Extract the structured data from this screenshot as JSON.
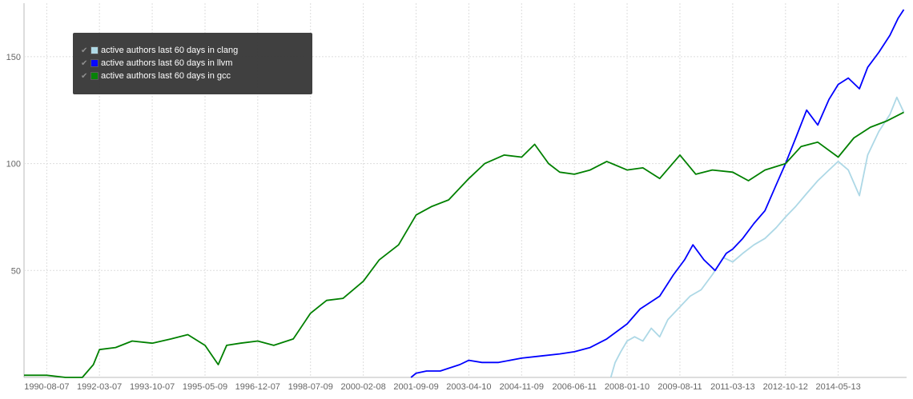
{
  "chart_data": {
    "type": "line",
    "title": "",
    "xlabel": "",
    "ylabel": "",
    "ylim": [
      0,
      175
    ],
    "xlim": [
      "1989-12-01",
      "2016-06-01"
    ],
    "grid": true,
    "legend_placement": "top-left",
    "x_tick_labels": [
      "1990-08-07",
      "1992-03-07",
      "1993-10-07",
      "1995-05-09",
      "1996-12-07",
      "1998-07-09",
      "2000-02-08",
      "2001-09-09",
      "2003-04-10",
      "2004-11-09",
      "2006-06-11",
      "2008-01-10",
      "2009-08-11",
      "2011-03-13",
      "2012-10-12",
      "2014-05-13"
    ],
    "y_tick_labels": [
      "50",
      "100",
      "150"
    ],
    "y_ticks": [
      50,
      100,
      150
    ],
    "series": [
      {
        "name": "active authors last 60 days in clang",
        "color": "#add8e6",
        "points": [
          [
            "2007-07-15",
            0
          ],
          [
            "2007-09-01",
            7
          ],
          [
            "2007-11-01",
            12
          ],
          [
            "2008-01-10",
            17
          ],
          [
            "2008-04-01",
            19
          ],
          [
            "2008-07-01",
            17
          ],
          [
            "2008-10-01",
            23
          ],
          [
            "2009-01-01",
            19
          ],
          [
            "2009-04-01",
            27
          ],
          [
            "2009-08-11",
            33
          ],
          [
            "2009-12-01",
            38
          ],
          [
            "2010-04-01",
            41
          ],
          [
            "2010-08-01",
            48
          ],
          [
            "2010-12-01",
            56
          ],
          [
            "2011-03-13",
            54
          ],
          [
            "2011-07-01",
            58
          ],
          [
            "2011-11-01",
            62
          ],
          [
            "2012-03-01",
            65
          ],
          [
            "2012-07-01",
            70
          ],
          [
            "2012-10-12",
            75
          ],
          [
            "2013-02-01",
            80
          ],
          [
            "2013-06-01",
            86
          ],
          [
            "2013-10-01",
            92
          ],
          [
            "2014-02-01",
            97
          ],
          [
            "2014-05-13",
            101
          ],
          [
            "2014-09-01",
            97
          ],
          [
            "2015-01-01",
            85
          ],
          [
            "2015-04-01",
            104
          ],
          [
            "2015-08-01",
            115
          ],
          [
            "2015-12-01",
            123
          ],
          [
            "2016-02-15",
            131
          ],
          [
            "2016-05-01",
            124
          ]
        ]
      },
      {
        "name": "active authors last 60 days in llvm",
        "color": "#0000ff",
        "points": [
          [
            "2001-07-15",
            0
          ],
          [
            "2001-09-09",
            2
          ],
          [
            "2002-01-01",
            3
          ],
          [
            "2002-06-01",
            3
          ],
          [
            "2003-01-01",
            6
          ],
          [
            "2003-04-10",
            8
          ],
          [
            "2003-09-01",
            7
          ],
          [
            "2004-03-01",
            7
          ],
          [
            "2004-11-09",
            9
          ],
          [
            "2005-06-01",
            10
          ],
          [
            "2006-01-01",
            11
          ],
          [
            "2006-06-11",
            12
          ],
          [
            "2006-12-01",
            14
          ],
          [
            "2007-06-01",
            18
          ],
          [
            "2008-01-10",
            25
          ],
          [
            "2008-06-01",
            32
          ],
          [
            "2009-01-01",
            38
          ],
          [
            "2009-06-01",
            48
          ],
          [
            "2009-10-01",
            55
          ],
          [
            "2010-01-01",
            62
          ],
          [
            "2010-05-01",
            55
          ],
          [
            "2010-09-01",
            50
          ],
          [
            "2011-01-01",
            58
          ],
          [
            "2011-03-13",
            60
          ],
          [
            "2011-07-01",
            65
          ],
          [
            "2011-11-01",
            72
          ],
          [
            "2012-03-01",
            78
          ],
          [
            "2012-07-01",
            90
          ],
          [
            "2012-10-12",
            100
          ],
          [
            "2013-02-01",
            112
          ],
          [
            "2013-06-01",
            125
          ],
          [
            "2013-10-01",
            118
          ],
          [
            "2014-02-01",
            130
          ],
          [
            "2014-05-13",
            137
          ],
          [
            "2014-09-01",
            140
          ],
          [
            "2015-01-01",
            135
          ],
          [
            "2015-04-01",
            145
          ],
          [
            "2015-08-01",
            152
          ],
          [
            "2015-12-01",
            160
          ],
          [
            "2016-03-01",
            168
          ],
          [
            "2016-05-01",
            172
          ]
        ]
      },
      {
        "name": "active authors last 60 days in gcc",
        "color": "#008000",
        "points": [
          [
            "1989-12-01",
            1
          ],
          [
            "1990-08-07",
            1
          ],
          [
            "1991-03-01",
            0
          ],
          [
            "1991-09-01",
            0
          ],
          [
            "1992-01-01",
            6
          ],
          [
            "1992-03-07",
            13
          ],
          [
            "1992-09-01",
            14
          ],
          [
            "1993-03-01",
            17
          ],
          [
            "1993-10-07",
            16
          ],
          [
            "1994-05-01",
            18
          ],
          [
            "1994-11-01",
            20
          ],
          [
            "1995-05-09",
            15
          ],
          [
            "1995-10-01",
            6
          ],
          [
            "1996-01-01",
            15
          ],
          [
            "1996-06-01",
            16
          ],
          [
            "1996-12-07",
            17
          ],
          [
            "1997-06-01",
            15
          ],
          [
            "1998-01-01",
            18
          ],
          [
            "1998-07-09",
            30
          ],
          [
            "1999-01-01",
            36
          ],
          [
            "1999-07-01",
            37
          ],
          [
            "2000-02-08",
            45
          ],
          [
            "2000-08-01",
            55
          ],
          [
            "2001-03-01",
            62
          ],
          [
            "2001-09-09",
            76
          ],
          [
            "2002-03-01",
            80
          ],
          [
            "2002-09-01",
            83
          ],
          [
            "2003-04-10",
            93
          ],
          [
            "2003-10-01",
            100
          ],
          [
            "2004-05-01",
            104
          ],
          [
            "2004-11-09",
            103
          ],
          [
            "2005-04-01",
            109
          ],
          [
            "2005-09-01",
            100
          ],
          [
            "2006-01-01",
            96
          ],
          [
            "2006-06-11",
            95
          ],
          [
            "2006-12-01",
            97
          ],
          [
            "2007-06-01",
            101
          ],
          [
            "2008-01-10",
            97
          ],
          [
            "2008-07-01",
            98
          ],
          [
            "2009-01-01",
            93
          ],
          [
            "2009-08-11",
            104
          ],
          [
            "2010-02-01",
            95
          ],
          [
            "2010-08-01",
            97
          ],
          [
            "2011-03-13",
            96
          ],
          [
            "2011-09-01",
            92
          ],
          [
            "2012-03-01",
            97
          ],
          [
            "2012-10-12",
            100
          ],
          [
            "2013-04-01",
            108
          ],
          [
            "2013-10-01",
            110
          ],
          [
            "2014-05-13",
            103
          ],
          [
            "2014-11-01",
            112
          ],
          [
            "2015-05-01",
            117
          ],
          [
            "2015-11-01",
            120
          ],
          [
            "2016-05-01",
            124
          ]
        ]
      }
    ]
  }
}
